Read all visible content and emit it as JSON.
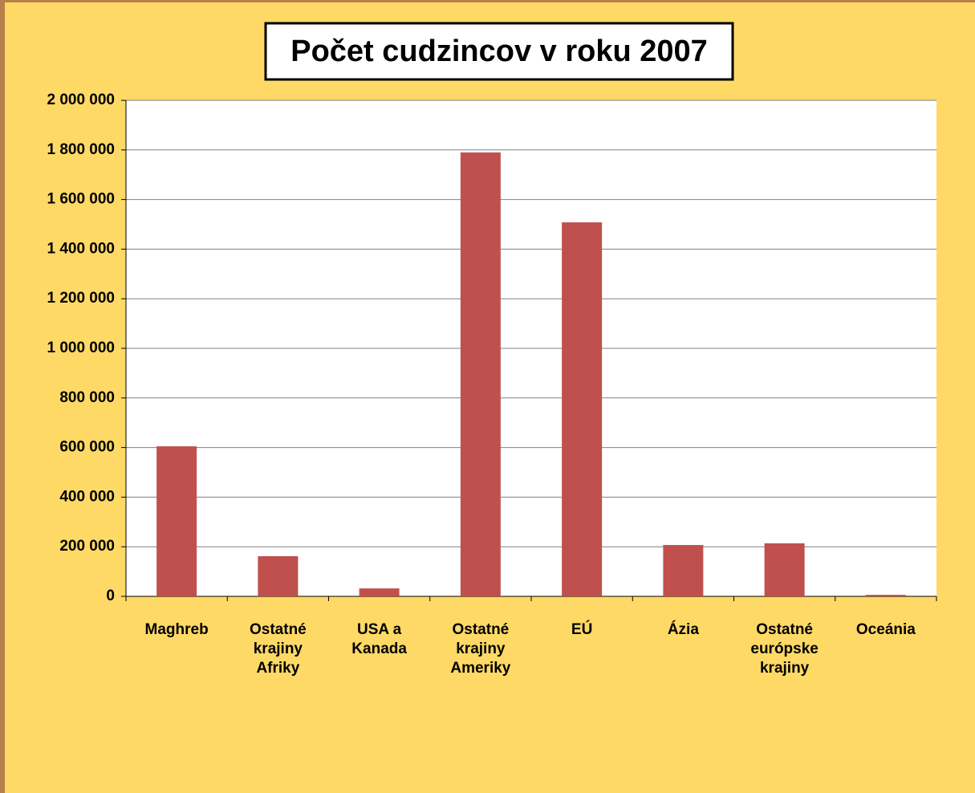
{
  "chart_data": {
    "type": "bar",
    "title": "Počet cudzincov v roku 2007",
    "categories": [
      "Maghreb",
      "Ostatné krajiny Afriky",
      "USA a Kanada",
      "Ostatné krajiny Ameriky",
      "EÚ",
      "Ázia",
      "Ostatné európske krajiny",
      "Oceánia"
    ],
    "values": [
      605000,
      162000,
      32000,
      1790000,
      1508000,
      207000,
      214000,
      6000
    ],
    "color": "#c0504d",
    "ylim": [
      0,
      2000000
    ],
    "yticks": [
      0,
      {
        "value": 200000,
        "label": "200 000"
      },
      {
        "value": 400000,
        "label": "400 000"
      },
      {
        "value": 600000,
        "label": "600 000"
      },
      {
        "value": 800000,
        "label": "800 000"
      },
      {
        "value": 1000000,
        "label": "1 000 000"
      },
      {
        "value": 1200000,
        "label": "1 200 000"
      },
      {
        "value": 1400000,
        "label": "1 400 000"
      },
      {
        "value": 1600000,
        "label": "1 600 000"
      },
      {
        "value": 1800000,
        "label": "1 800 000"
      },
      {
        "value": 2000000,
        "label": "2 000 000"
      }
    ],
    "grid": true
  }
}
